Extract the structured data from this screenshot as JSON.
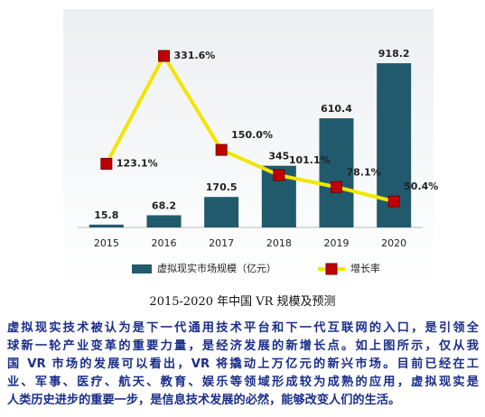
{
  "chart_data": {
    "type": "bar_line",
    "categories": [
      "2015",
      "2016",
      "2017",
      "2018",
      "2019",
      "2020"
    ],
    "series": [
      {
        "name": "虚拟现实市场规模（亿元）",
        "type": "bar",
        "color": "#215a6d",
        "values": [
          15.8,
          68.2,
          170.5,
          345,
          610.4,
          918.2
        ]
      },
      {
        "name": "增长率",
        "type": "line",
        "axis": "y2",
        "color": "#f2e600",
        "marker_color": "#c00000",
        "values": [
          123.1,
          331.6,
          150.0,
          101.1,
          78.1,
          50.4
        ],
        "value_labels": [
          "123.1%",
          "331.6%",
          "150.0%",
          "101.1%",
          "78.1%",
          "50.4%"
        ]
      }
    ],
    "ylim": [
      0,
      1070
    ],
    "y2lim": [
      0,
      370
    ],
    "legend": "bottom"
  },
  "caption": "2015-2020 年中国 VR 规模及预测",
  "paragraph": [
    "虚拟现实技术被认为是下一代通用技术平台和下一代互联网的入口，是引领全",
    "球新一轮产业变革的重要力量，是经济发展的新增长点。如上图所示，仅从我",
    "国 VR 市场的发展可以看出，VR 将撬动上万亿元的新兴市场。目前已经在工",
    "业、军事、医疗、航天、教育、娱乐等领域形成较为成熟的应用，虚拟现实是",
    "人类历史进步的重要一步，是信息技术发展的必然，能够改变人们的生活。"
  ]
}
